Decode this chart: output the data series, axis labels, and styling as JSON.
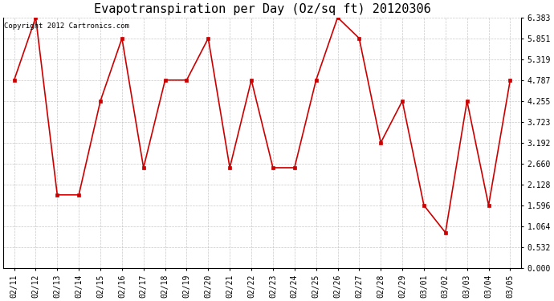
{
  "title": "Evapotranspiration per Day (Oz/sq ft) 20120306",
  "copyright": "Copyright 2012 Cartronics.com",
  "x_labels": [
    "02/11",
    "02/12",
    "02/13",
    "02/14",
    "02/15",
    "02/16",
    "02/17",
    "02/18",
    "02/19",
    "02/20",
    "02/21",
    "02/22",
    "02/23",
    "02/24",
    "02/25",
    "02/26",
    "02/27",
    "02/28",
    "02/29",
    "03/01",
    "03/02",
    "03/03",
    "03/04",
    "03/05"
  ],
  "y_values": [
    4.787,
    6.383,
    1.862,
    1.862,
    4.255,
    5.851,
    2.554,
    4.787,
    4.787,
    5.851,
    2.554,
    4.787,
    2.554,
    2.554,
    4.787,
    6.383,
    5.851,
    3.192,
    4.255,
    1.596,
    0.9,
    4.255,
    1.596,
    4.787
  ],
  "line_color": "#cc0000",
  "marker": "s",
  "marker_size": 3,
  "marker_color": "#cc0000",
  "ylim_min": 0.0,
  "ylim_max": 6.383,
  "yticks": [
    0.0,
    0.532,
    1.064,
    1.596,
    2.128,
    2.66,
    3.192,
    3.723,
    4.255,
    4.787,
    5.319,
    5.851,
    6.383
  ],
  "grid_color": "#bbbbbb",
  "background_color": "#ffffff",
  "title_fontsize": 11,
  "tick_fontsize": 7,
  "copyright_fontsize": 6.5
}
